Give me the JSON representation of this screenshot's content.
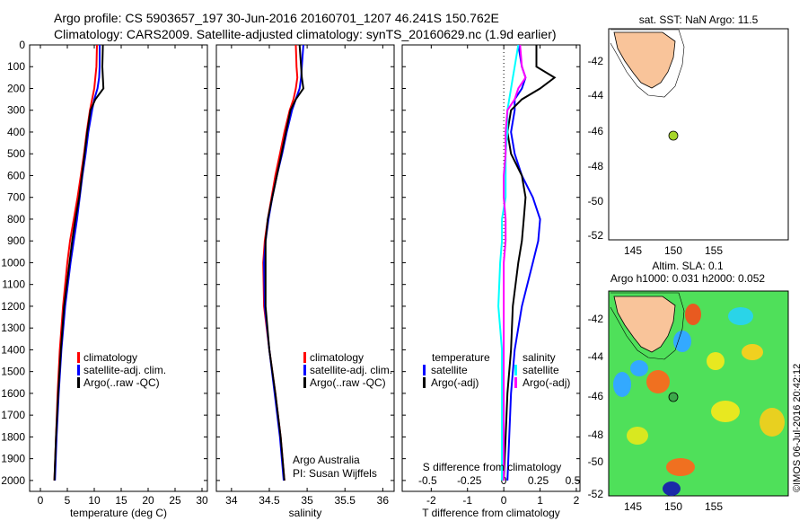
{
  "header": {
    "line1": "Argo profile: CS 5903657_197 30-Jun-2016 20160701_1207 46.241S 150.762E",
    "line2": "Climatology: CARS2009. Satellite-adjusted climatology: synTS_20160629.nc (1.9d earlier)"
  },
  "colors": {
    "climatology": "#ff0000",
    "satellite": "#0000ff",
    "argo": "#000000",
    "sal_satellite": "#00ffff",
    "sal_argo": "#ff00ff",
    "land": "#f9c49a",
    "marker": "#a6d62a"
  },
  "yaxis": {
    "ticks": [
      0,
      100,
      200,
      300,
      400,
      500,
      600,
      700,
      800,
      900,
      1000,
      1100,
      1200,
      1300,
      1400,
      1500,
      1600,
      1700,
      1800,
      1900,
      2000
    ],
    "ylim": [
      0,
      2050
    ]
  },
  "chart_data": [
    {
      "type": "line",
      "name": "temperature-profile",
      "xlabel": "temperature (deg C)",
      "xlim": [
        -2,
        31
      ],
      "xticks": [
        "0",
        "5",
        "10",
        "15",
        "20",
        "25",
        "30"
      ],
      "xtick_values": [
        0,
        5,
        10,
        15,
        20,
        25,
        30
      ],
      "legend": [
        "climatology",
        "satellite-adj. clim.",
        "Argo(..raw -QC)"
      ],
      "depth": [
        0,
        100,
        150,
        200,
        250,
        300,
        400,
        500,
        600,
        700,
        800,
        900,
        1000,
        1200,
        1400,
        1600,
        1800,
        2000
      ],
      "series": [
        {
          "name": "climatology",
          "values": [
            10.5,
            10.4,
            10.2,
            10.0,
            9.6,
            9.2,
            8.6,
            8.1,
            7.5,
            6.9,
            6.2,
            5.5,
            5.0,
            4.2,
            3.6,
            3.2,
            2.9,
            2.6
          ]
        },
        {
          "name": "satellite-adj. clim.",
          "values": [
            11.0,
            11.0,
            10.9,
            10.6,
            10.0,
            9.6,
            8.9,
            8.4,
            7.8,
            7.3,
            6.8,
            6.2,
            5.6,
            4.6,
            3.9,
            3.4,
            3.0,
            2.7
          ]
        },
        {
          "name": "Argo(..raw -QC)",
          "values": [
            11.6,
            11.5,
            11.6,
            11.7,
            10.2,
            9.3,
            8.7,
            8.2,
            7.7,
            7.2,
            6.5,
            5.9,
            5.4,
            4.4,
            3.8,
            3.3,
            2.9,
            2.6
          ]
        }
      ]
    },
    {
      "type": "line",
      "name": "salinity-profile",
      "xlabel": "salinity",
      "xlim": [
        33.8,
        36.15
      ],
      "xticks": [
        "34",
        "34.5",
        "35",
        "35.5",
        "36"
      ],
      "xtick_values": [
        34,
        34.5,
        35,
        35.5,
        36
      ],
      "legend": [
        "climatology",
        "satellite-adj. clim.",
        "Argo(..raw -QC)"
      ],
      "annotation": [
        "Argo Australia",
        "PI: Susan Wijffels"
      ],
      "depth": [
        0,
        100,
        150,
        200,
        250,
        300,
        400,
        500,
        600,
        700,
        800,
        900,
        1000,
        1200,
        1400,
        1600,
        1800,
        2000
      ],
      "series": [
        {
          "name": "climatology",
          "values": [
            34.85,
            34.86,
            34.87,
            34.85,
            34.82,
            34.77,
            34.7,
            34.64,
            34.58,
            34.53,
            34.48,
            34.44,
            34.42,
            34.43,
            34.5,
            34.58,
            34.65,
            34.7
          ]
        },
        {
          "name": "satellite-adj. clim.",
          "values": [
            34.95,
            34.93,
            34.92,
            34.9,
            34.85,
            34.8,
            34.73,
            34.67,
            34.6,
            34.54,
            34.49,
            34.45,
            34.43,
            34.44,
            34.5,
            34.57,
            34.64,
            34.69
          ]
        },
        {
          "name": "Argo(..raw -QC)",
          "values": [
            34.9,
            34.92,
            34.93,
            34.95,
            34.85,
            34.78,
            34.72,
            34.66,
            34.6,
            34.54,
            34.48,
            34.45,
            34.45,
            34.45,
            34.5,
            34.58,
            34.65,
            34.7
          ]
        }
      ]
    },
    {
      "type": "line",
      "name": "difference-profile",
      "xlabel": "T difference from climatology",
      "xlim": [
        -2.8,
        2.1
      ],
      "xticks": [
        "-2",
        "-1",
        "0",
        "1",
        "2"
      ],
      "xtick_values": [
        -2,
        -1,
        0,
        1,
        2
      ],
      "top_xlabel": "S difference from climatology",
      "top_xticks": [
        "-0.5",
        "-0.25",
        "0",
        "0.25",
        "0.5"
      ],
      "legend_titles": [
        "temperature",
        "salinity"
      ],
      "legend_left": [
        "satellite",
        "Argo(-adj)"
      ],
      "legend_right": [
        "satellite",
        "Argo(-adj)"
      ],
      "depth": [
        0,
        100,
        150,
        200,
        250,
        300,
        400,
        500,
        600,
        700,
        800,
        900,
        1000,
        1200,
        1400,
        1600,
        1800,
        2000
      ],
      "series": [
        {
          "name": "temperature satellite",
          "values": [
            0.4,
            0.5,
            0.6,
            0.5,
            0.3,
            0.3,
            0.2,
            0.3,
            0.5,
            0.8,
            1.0,
            0.95,
            0.8,
            0.5,
            0.3,
            0.2,
            0.15,
            0.1
          ]
        },
        {
          "name": "temperature Argo(-adj)",
          "values": [
            0.9,
            0.9,
            1.4,
            1.0,
            0.5,
            0.2,
            0.1,
            0.2,
            0.5,
            0.6,
            0.55,
            0.5,
            0.4,
            0.25,
            0.2,
            0.1,
            0.05,
            0.0
          ]
        },
        {
          "name": "salinity satellite",
          "values": [
            0.4,
            0.3,
            0.25,
            0.2,
            0.15,
            0.1,
            0.1,
            0.05,
            0.05,
            0.05,
            -0.05,
            -0.05,
            -0.1,
            -0.15,
            -0.05,
            -0.05,
            -0.05,
            -0.05
          ]
        },
        {
          "name": "salinity Argo(-adj)",
          "values": [
            0.45,
            0.5,
            0.6,
            0.4,
            0.3,
            0.1,
            0.05,
            0.05,
            0.0,
            0.0,
            0.05,
            0.05,
            0.0,
            0.0,
            0.0,
            0.0,
            0.0,
            0.0
          ]
        }
      ]
    }
  ],
  "maps": {
    "sst_title": "sat. SST: NaN Argo: 11.5",
    "sla_title_1": "Altim. SLA: 0.1",
    "sla_title_2": "Argo h1000: 0.031 h2000: 0.052",
    "lon_ticks": [
      "145",
      "150",
      "155"
    ],
    "lat_ticks": [
      "-42",
      "-44",
      "-46",
      "-48",
      "-50",
      "-52"
    ],
    "argo_position": {
      "lon": 150.762,
      "lat": -46.241
    }
  },
  "footer_vertical": "©IMOS 06-Jul-2016 20:42:12"
}
